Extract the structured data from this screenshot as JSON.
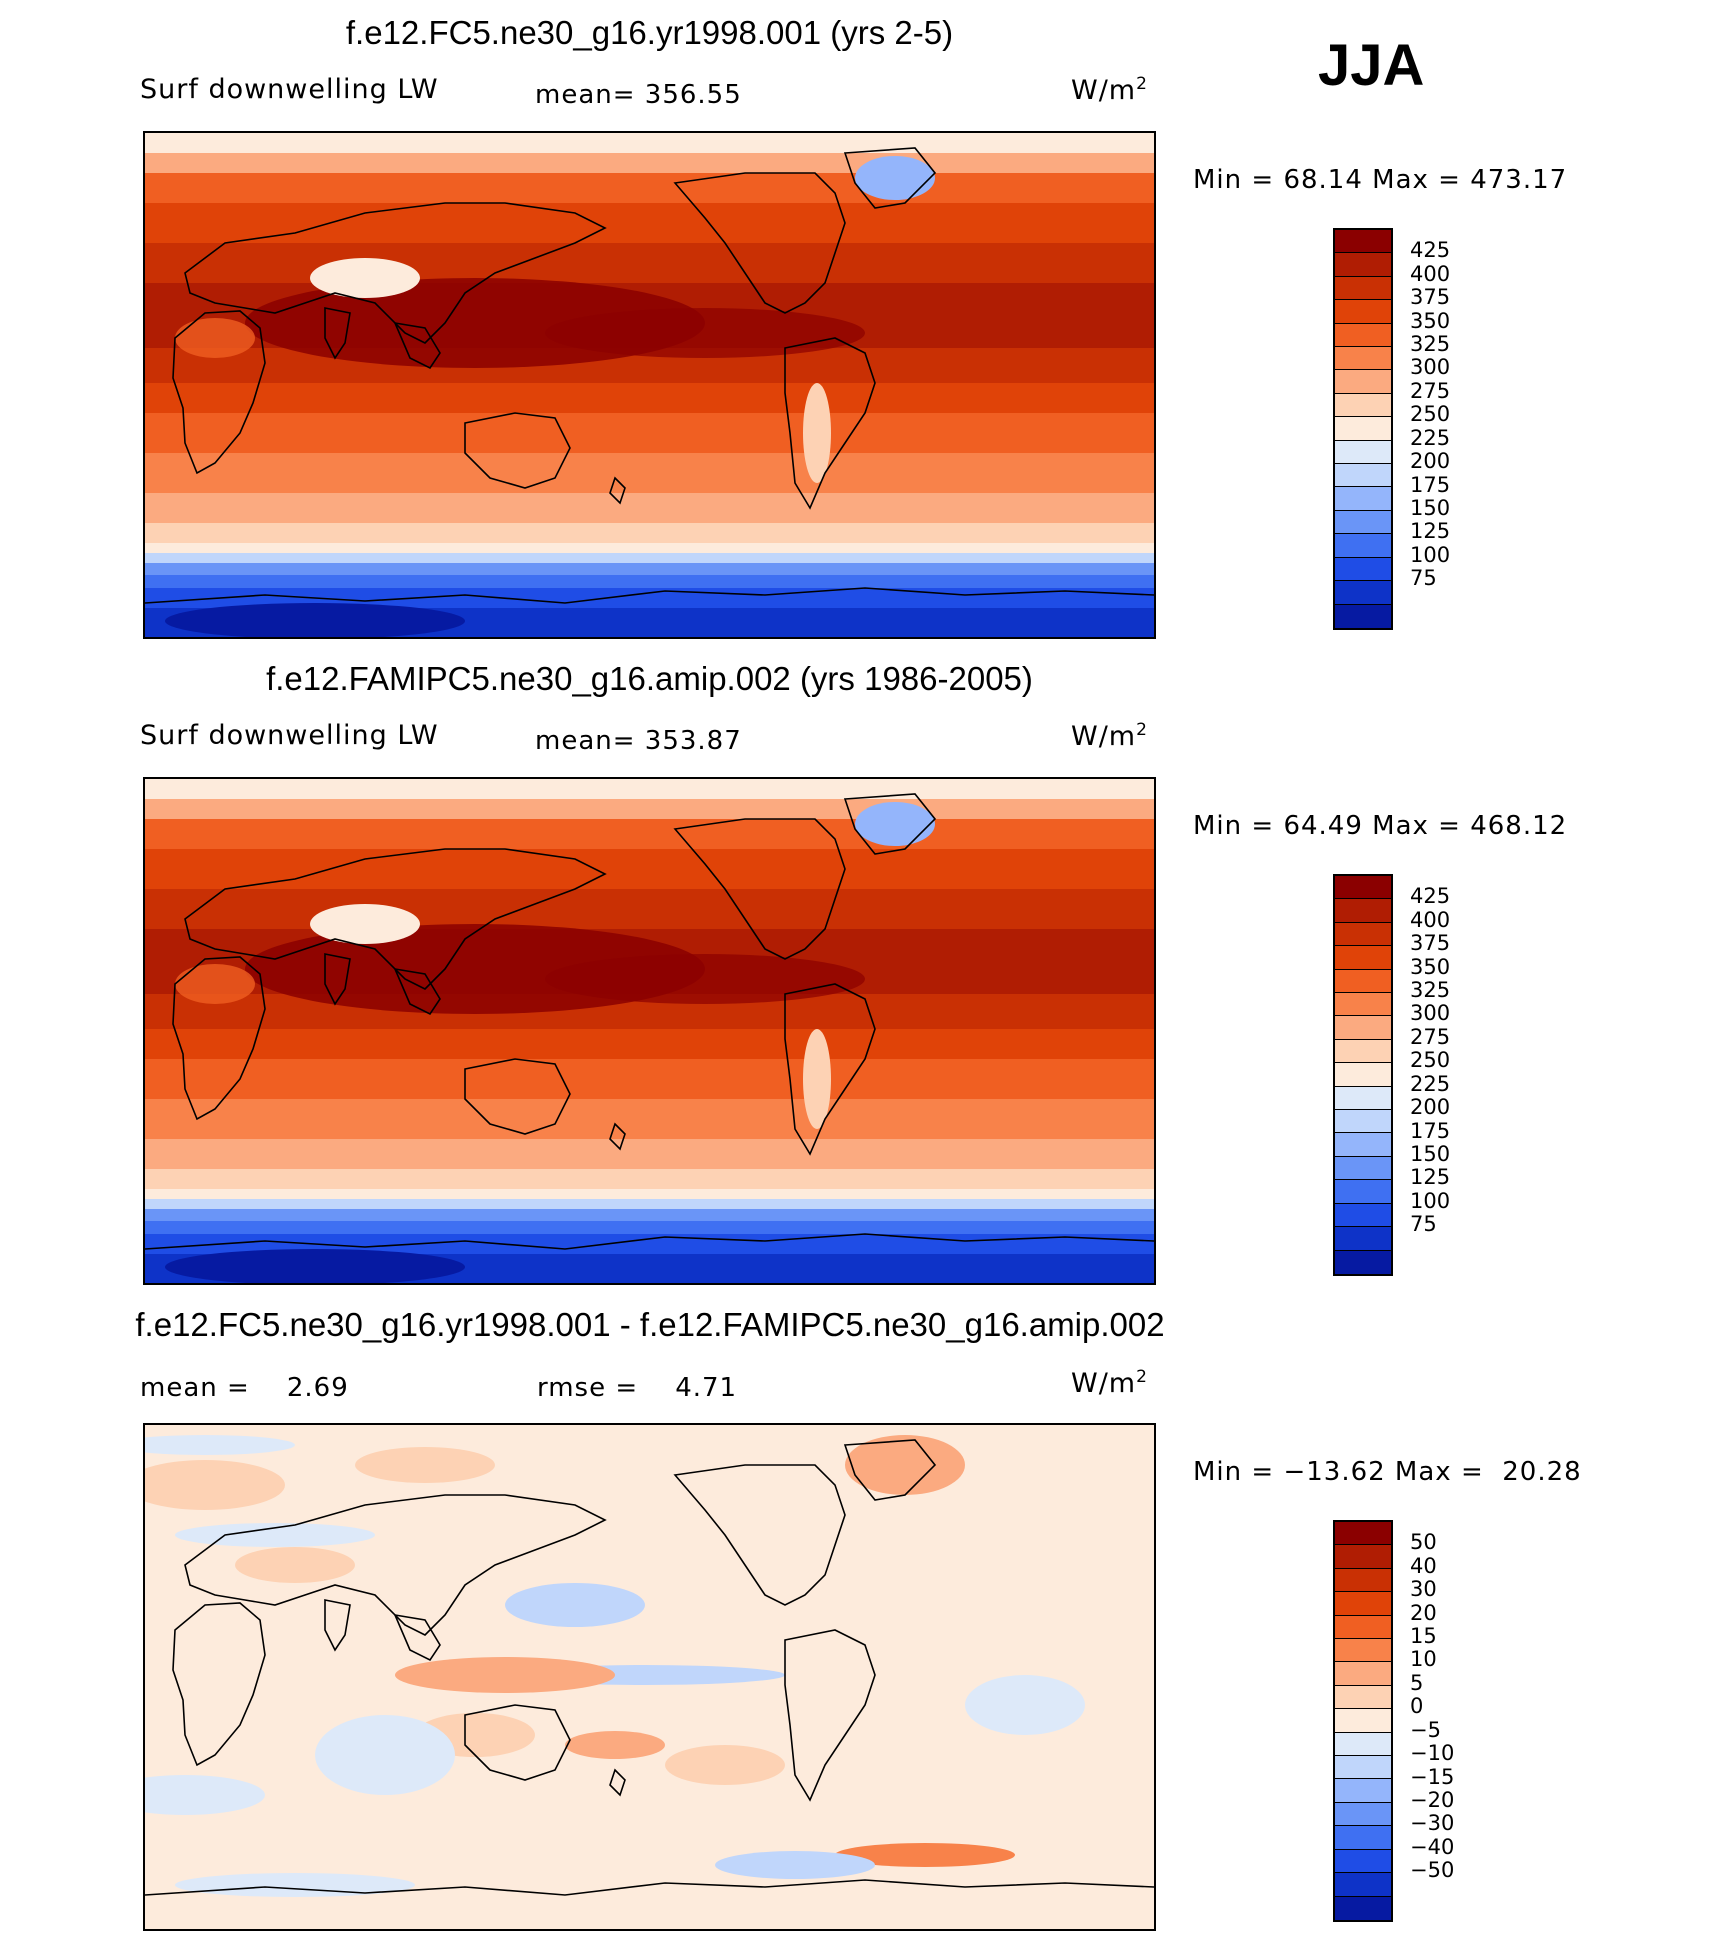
{
  "season": "JJA",
  "panels": [
    {
      "title": "f.e12.FC5.ne30_g16.yr1998.001 (yrs 2-5)",
      "left_label": "Surf downwelling LW",
      "center_label": "mean= 356.55",
      "units": "W/m",
      "units_sup": "2",
      "minmax": "Min =   68.14 Max = 473.17",
      "colorbar": {
        "levels": [
          "425",
          "400",
          "375",
          "350",
          "325",
          "300",
          "275",
          "250",
          "225",
          "200",
          "175",
          "150",
          "125",
          "100",
          "75"
        ],
        "colors": [
          "#8b0000",
          "#b01d03",
          "#c93004",
          "#e04308",
          "#f05f22",
          "#f8824a",
          "#fbaa80",
          "#fdd2b4",
          "#fdebdc",
          "#dde9f9",
          "#c0d6fb",
          "#94b5fb",
          "#6a95f7",
          "#3f70f2",
          "#1f4de6",
          "#0e33c8",
          "#061aa2"
        ]
      },
      "map_type": "absolute"
    },
    {
      "title": "f.e12.FAMIPC5.ne30_g16.amip.002 (yrs 1986-2005)",
      "left_label": "Surf downwelling LW",
      "center_label": "mean= 353.87",
      "units": "W/m",
      "units_sup": "2",
      "minmax": "Min =   64.49 Max = 468.12",
      "colorbar": {
        "levels": [
          "425",
          "400",
          "375",
          "350",
          "325",
          "300",
          "275",
          "250",
          "225",
          "200",
          "175",
          "150",
          "125",
          "100",
          "75"
        ],
        "colors": [
          "#8b0000",
          "#b01d03",
          "#c93004",
          "#e04308",
          "#f05f22",
          "#f8824a",
          "#fbaa80",
          "#fdd2b4",
          "#fdebdc",
          "#dde9f9",
          "#c0d6fb",
          "#94b5fb",
          "#6a95f7",
          "#3f70f2",
          "#1f4de6",
          "#0e33c8",
          "#061aa2"
        ]
      },
      "map_type": "absolute"
    },
    {
      "title": "f.e12.FC5.ne30_g16.yr1998.001 - f.e12.FAMIPC5.ne30_g16.amip.002",
      "left_label": "mean =    2.69",
      "center_label": "rmse =    4.71",
      "units": "W/m",
      "units_sup": "2",
      "minmax": "Min = −13.62 Max =  20.28",
      "colorbar": {
        "levels": [
          "50",
          "40",
          "30",
          "20",
          "15",
          "10",
          "5",
          "0",
          "−5",
          "−10",
          "−15",
          "−20",
          "−30",
          "−40",
          "−50"
        ],
        "colors": [
          "#8b0000",
          "#b01d03",
          "#c93004",
          "#e04308",
          "#f05f22",
          "#f8824a",
          "#fbaa80",
          "#fdd2b4",
          "#fdebdc",
          "#dde9f9",
          "#c0d6fb",
          "#94b5fb",
          "#6a95f7",
          "#3f70f2",
          "#1f4de6",
          "#0e33c8",
          "#061aa2"
        ]
      },
      "map_type": "difference"
    }
  ]
}
